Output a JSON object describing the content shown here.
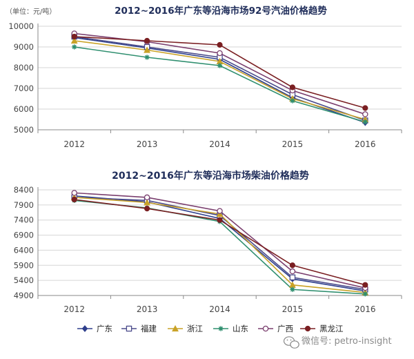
{
  "chart_data": [
    {
      "type": "line",
      "title": "2012~2016年广东等沿海市场92号汽油价格趋势",
      "unit_label": "（单位：元/吨）",
      "categories": [
        "2012",
        "2013",
        "2014",
        "2015",
        "2016"
      ],
      "ylim": [
        5000,
        10000
      ],
      "yticks": [
        5000,
        6000,
        7000,
        8000,
        9000,
        10000
      ],
      "grid": true,
      "series": [
        {
          "name": "广东",
          "values": [
            9450,
            8950,
            8400,
            6550,
            5350
          ]
        },
        {
          "name": "福建",
          "values": [
            9500,
            9000,
            8500,
            6700,
            5450
          ]
        },
        {
          "name": "浙江",
          "values": [
            9300,
            8850,
            8300,
            6500,
            5500
          ]
        },
        {
          "name": "山东",
          "values": [
            9000,
            8500,
            8100,
            6400,
            5380
          ]
        },
        {
          "name": "广西",
          "values": [
            9650,
            9250,
            8700,
            6900,
            5750
          ]
        },
        {
          "name": "黑龙江",
          "values": [
            9500,
            9300,
            9100,
            7050,
            6050
          ]
        }
      ]
    },
    {
      "type": "line",
      "title": "2012~2016年广东等沿海市场柴油价格趋势",
      "categories": [
        "2012",
        "2013",
        "2014",
        "2015",
        "2016"
      ],
      "ylim": [
        4900,
        8400
      ],
      "yticks": [
        4900,
        5400,
        5900,
        6400,
        6900,
        7400,
        7900,
        8400
      ],
      "grid": true,
      "series": [
        {
          "name": "广东",
          "values": [
            8200,
            8000,
            7450,
            5450,
            5050
          ]
        },
        {
          "name": "福建",
          "values": [
            8150,
            8050,
            7550,
            5500,
            5100
          ]
        },
        {
          "name": "浙江",
          "values": [
            8150,
            7980,
            7600,
            5250,
            5000
          ]
        },
        {
          "name": "山东",
          "values": [
            8050,
            7800,
            7350,
            5100,
            4950
          ]
        },
        {
          "name": "广西",
          "values": [
            8300,
            8150,
            7700,
            5700,
            5150
          ]
        },
        {
          "name": "黑龙江",
          "values": [
            8080,
            7780,
            7400,
            5900,
            5250
          ]
        }
      ]
    }
  ],
  "legend": {
    "placement": "bottom",
    "items": [
      {
        "name": "广东",
        "color": "#2e3f8c",
        "marker": "diamond"
      },
      {
        "name": "福建",
        "color": "#4a4a8a",
        "marker": "square-open"
      },
      {
        "name": "浙江",
        "color": "#c9a227",
        "marker": "triangle"
      },
      {
        "name": "山东",
        "color": "#2f8f6f",
        "marker": "star"
      },
      {
        "name": "广西",
        "color": "#7a3e6e",
        "marker": "circle-open"
      },
      {
        "name": "黑龙江",
        "color": "#7a1f22",
        "marker": "circle"
      }
    ]
  },
  "watermark": {
    "icon": "wechat-icon",
    "text": "微信号: petro-insight"
  }
}
